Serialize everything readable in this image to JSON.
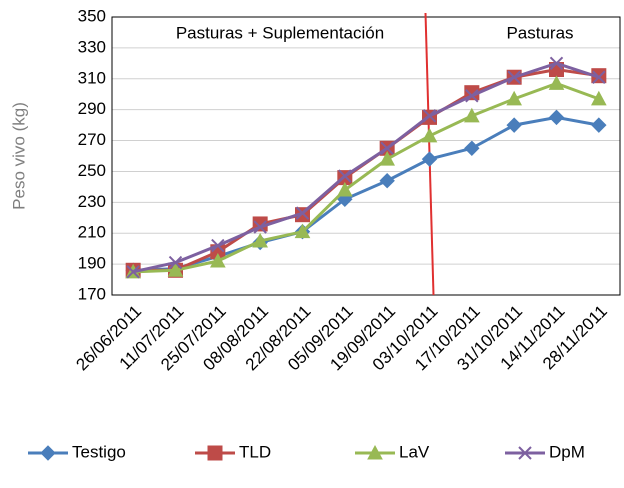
{
  "chart_data": {
    "type": "line",
    "y_label": "Peso vivo (kg)",
    "annotations": [
      "Pasturas + Suplementación",
      "Pasturas"
    ],
    "categories": [
      "26/06/2011",
      "11/07/2011",
      "25/07/2011",
      "08/08/2011",
      "22/08/2011",
      "05/09/2011",
      "19/09/2011",
      "03/10/2011",
      "17/10/2011",
      "31/10/2011",
      "14/11/2011",
      "28/11/2011"
    ],
    "series": [
      {
        "name": "Testigo",
        "color": "#4a7ebb",
        "marker": "diamond",
        "values": [
          186,
          187,
          195,
          204,
          211,
          232,
          244,
          258,
          265,
          280,
          285,
          280
        ]
      },
      {
        "name": "TLD",
        "color": "#be4b48",
        "marker": "square",
        "values": [
          186,
          186,
          198,
          216,
          222,
          246,
          265,
          285,
          301,
          311,
          316,
          312
        ]
      },
      {
        "name": "LaV",
        "color": "#98b954",
        "marker": "triangle",
        "values": [
          185,
          186,
          192,
          205,
          211,
          238,
          258,
          273,
          286,
          297,
          307,
          297
        ]
      },
      {
        "name": "DpM",
        "color": "#7d60a0",
        "marker": "x",
        "values": [
          185,
          191,
          202,
          214,
          223,
          247,
          265,
          286,
          299,
          311,
          320,
          311
        ]
      }
    ],
    "ylim": [
      170,
      350
    ],
    "yticks": [
      170,
      190,
      210,
      230,
      250,
      270,
      290,
      310,
      330,
      350
    ],
    "grid": true,
    "legend": "bottom"
  }
}
